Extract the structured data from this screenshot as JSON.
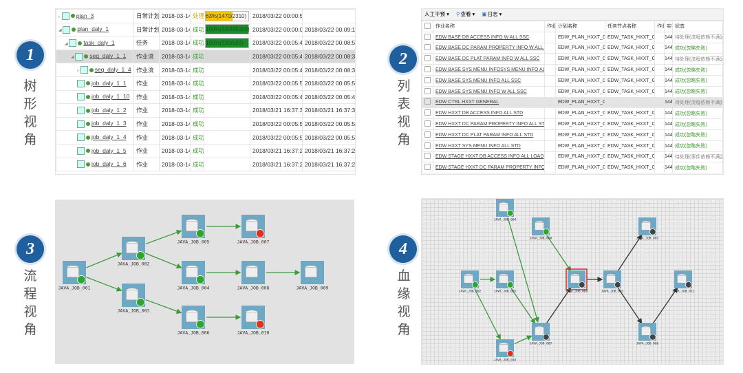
{
  "views": [
    {
      "number": "1",
      "label": [
        "树",
        "形",
        "视",
        "角"
      ]
    },
    {
      "number": "2",
      "label": [
        "列",
        "表",
        "视",
        "角"
      ]
    },
    {
      "number": "3",
      "label": [
        "流",
        "程",
        "视",
        "角"
      ]
    },
    {
      "number": "4",
      "label": [
        "血",
        "缘",
        "视",
        "角"
      ]
    }
  ],
  "tree_view": {
    "rows": [
      {
        "name": "plan_3",
        "type": "日常计划",
        "date": "2018-03-14",
        "status": "处理中",
        "progress": "63%(1470/2310)",
        "pct": 63,
        "start": "2018/03/22 00:00:51",
        "end": "",
        "indent": 0,
        "icon": "plan-icon"
      },
      {
        "name": "plan_daly_1",
        "type": "日常计划",
        "date": "2018-03-14",
        "status": "成功",
        "progress": "100%(5000/5000)",
        "pct": 100,
        "start": "2018/03/22 00:00:04",
        "end": "2018/03/22 00:09:13",
        "indent": 0,
        "icon": "plan-icon"
      },
      {
        "name": "task_daly_1",
        "type": "任务",
        "date": "2018-03-14",
        "status": "成功",
        "progress": "100%(500/500)",
        "pct": 100,
        "start": "2018/03/22 00:05:43",
        "end": "2018/03/22 00:08:55",
        "indent": 1,
        "icon": "folder-icon"
      },
      {
        "name": "seq_daly_1_1",
        "type": "作业流",
        "date": "2018-03-14",
        "status": "成功",
        "progress": "",
        "start": "2018/03/22 00:05:46",
        "end": "2018/03/22 00:08:35",
        "indent": 2,
        "icon": "sequence-icon",
        "selected": true
      },
      {
        "name": "seq_daly_1_4",
        "type": "作业流",
        "date": "2018-03-14",
        "status": "成功",
        "progress": "",
        "start": "2018/03/22 00:05:47",
        "end": "2018/03/22 00:08:34",
        "indent": 3,
        "icon": "sequence-icon"
      },
      {
        "name": "job_daly_1_1",
        "type": "作业",
        "date": "2018-03-14",
        "status": "成功",
        "progress": "",
        "start": "2018/03/22 00:05:59",
        "end": "2018/03/22 00:05:59",
        "indent": 3,
        "icon": "job-icon"
      },
      {
        "name": "job_daly_1_10",
        "type": "作业",
        "date": "2018-03-14",
        "status": "成功",
        "progress": "",
        "start": "2018/03/22 00:05:46",
        "end": "2018/03/22 00:05:46",
        "indent": 3,
        "icon": "job-icon"
      },
      {
        "name": "job_daly_1_2",
        "type": "作业",
        "date": "2018-03-14",
        "status": "成功",
        "progress": "",
        "start": "2018/03/21 16:37:30",
        "end": "2018/03/21 16:37:30",
        "indent": 3,
        "icon": "job-icon"
      },
      {
        "name": "job_daly_1_3",
        "type": "作业",
        "date": "2018-03-14",
        "status": "成功",
        "progress": "",
        "start": "2018/03/22 00:05:54",
        "end": "2018/03/22 00:05:54",
        "indent": 3,
        "icon": "job-icon"
      },
      {
        "name": "job_daly_1_4",
        "type": "作业",
        "date": "2018-03-14",
        "status": "成功",
        "progress": "",
        "start": "2018/03/22 00:05:53",
        "end": "2018/03/22 00:05:53",
        "indent": 3,
        "icon": "job-icon"
      },
      {
        "name": "job_daly_1_5",
        "type": "作业",
        "date": "2018-03-14",
        "status": "成功",
        "progress": "",
        "start": "2018/03/21 16:37:22",
        "end": "2018/03/21 16:37:22",
        "indent": 3,
        "icon": "job-icon"
      },
      {
        "name": "job_daly_1_6",
        "type": "作业",
        "date": "2018-03-14",
        "status": "成功",
        "progress": "",
        "start": "2018/03/21 16:37:26",
        "end": "2018/03/21 16:37:26",
        "indent": 3,
        "icon": "job-icon"
      }
    ]
  },
  "list_view": {
    "toolbar": [
      "人工干预 ▾",
      "查看 ▾",
      "日志 ▾"
    ],
    "headers": [
      "作业名称",
      "作业",
      "计划名称",
      "任务节点名称",
      "作业",
      "实例",
      "状态"
    ],
    "rows": [
      {
        "name": "EDW BASE DB ACCESS INFO W ALL SSC",
        "plan": "EDW_PLAN_HXXT_GENER",
        "task": "EDW_TASK_HXXT_GENER",
        "inst": "144(",
        "status": "待处理(流程依赖不满足)",
        "ok": false
      },
      {
        "name": "EDW BASE DC PARAM PROPERTY INFO W ALL SSC",
        "plan": "EDW_PLAN_HXXT_GENER",
        "task": "EDW_TASK_HXXT_GENER",
        "inst": "144(",
        "status": "成功(忽略失败)",
        "ok": true
      },
      {
        "name": "EDW BASE DC PLAT PARAM INFO W ALL SSC",
        "plan": "EDW_PLAN_HXXT_GENER",
        "task": "EDW_TASK_HXXT_GENER",
        "inst": "144(",
        "status": "待处理(流程依赖不满足)",
        "ok": false
      },
      {
        "name": "EDW BASE SYS MENU INFOSYS MENU INFO ALL SSC",
        "plan": "EDW_PLAN_HXXT_GENER",
        "task": "EDW_TASK_HXXT_GENER",
        "inst": "144(",
        "status": "成功(忽略失败)",
        "ok": true
      },
      {
        "name": "EDW BASE SYS MENU INFO ALL SSC",
        "plan": "EDW_PLAN_HXXT_GENER",
        "task": "EDW_TASK_HXXT_GENER",
        "inst": "144(",
        "status": "成功(忽略失败)",
        "ok": true
      },
      {
        "name": "EDW BASE SYS MENU INFO W ALL SSC",
        "plan": "EDW_PLAN_HXXT_GENER",
        "task": "EDW_TASK_HXXT_GENER",
        "inst": "144(",
        "status": "成功(忽略失败)",
        "ok": true
      },
      {
        "name": "EDW CTRL HXXT GENERAL",
        "plan": "EDW_PLAN_HXXT_GENER",
        "task": "",
        "inst": "144(",
        "status": "待处理(流程依赖不满足)",
        "ok": false,
        "selected": true
      },
      {
        "name": "EDW HXXT DB ACCESS INFO ALL STD",
        "plan": "EDW_PLAN_HXXT_GENER",
        "task": "EDW_TASK_HXXT_GENER",
        "inst": "144(",
        "status": "成功(忽略失败)",
        "ok": true
      },
      {
        "name": "EDW HXXT DC PARAM PROPERTY INFO ALL STD",
        "plan": "EDW_PLAN_HXXT_GENER",
        "task": "EDW_TASK_HXXT_GENER",
        "inst": "144(",
        "status": "成功(忽略失败)",
        "ok": true
      },
      {
        "name": "EDW HXXT DC PLAT PARAM INFO ALL STD",
        "plan": "EDW_PLAN_HXXT_GENER",
        "task": "EDW_TASK_HXXT_GENER",
        "inst": "144(",
        "status": "成功(忽略失败)",
        "ok": true
      },
      {
        "name": "EDW HXXT SYS MENU INFO ALL STD",
        "plan": "EDW_PLAN_HXXT_GENER",
        "task": "EDW_TASK_HXXT_GENER",
        "inst": "144(",
        "status": "成功(忽略失败)",
        "ok": true
      },
      {
        "name": "EDW STAGE HXXT DB ACCESS INFO ALL LOAD",
        "plan": "EDW_PLAN_HXXT_GENER",
        "task": "EDW_TASK_HXXT_GENER",
        "inst": "144(",
        "status": "待处理(事件依赖不满足)",
        "ok": false
      },
      {
        "name": "EDW STAGE HXXT DC PARAM PROPERTY INFO ALL LOA",
        "plan": "EDW_PLAN_HXXT_GENER",
        "task": "EDW_TASK_HXXT_GENER",
        "inst": "144(",
        "status": "成功(忽略失败)",
        "ok": true
      }
    ]
  },
  "flow_view": {
    "nodes": [
      {
        "id": "JAVA_JOB_001",
        "state": "success"
      },
      {
        "id": "JAVA_JOB_002",
        "state": "success"
      },
      {
        "id": "JAVA_JOB_003",
        "state": "success"
      },
      {
        "id": "JAVA_JOB_005",
        "state": "success"
      },
      {
        "id": "JAVA_JOB_004",
        "state": "success"
      },
      {
        "id": "JAVA_JOB_006",
        "state": "success"
      },
      {
        "id": "JAVA_JOB_007",
        "state": "failed"
      },
      {
        "id": "JAVA_JOB_008",
        "state": "none"
      },
      {
        "id": "JAVA_JOB_010",
        "state": "failed"
      },
      {
        "id": "JAVA_JOB_009",
        "state": "none"
      }
    ],
    "edges": [
      [
        "JAVA_JOB_001",
        "JAVA_JOB_002"
      ],
      [
        "JAVA_JOB_001",
        "JAVA_JOB_003"
      ],
      [
        "JAVA_JOB_002",
        "JAVA_JOB_005"
      ],
      [
        "JAVA_JOB_002",
        "JAVA_JOB_004"
      ],
      [
        "JAVA_JOB_003",
        "JAVA_JOB_006"
      ],
      [
        "JAVA_JOB_005",
        "JAVA_JOB_007"
      ],
      [
        "JAVA_JOB_004",
        "JAVA_JOB_008"
      ],
      [
        "JAVA_JOB_006",
        "JAVA_JOB_010"
      ],
      [
        "JAVA_JOB_008",
        "JAVA_JOB_009"
      ]
    ]
  },
  "lineage_view": {
    "nodes": [
      {
        "id": "JAVA_JOB_004",
        "state": "success"
      },
      {
        "id": "JAVA_JOB_008",
        "state": "success"
      },
      {
        "id": "JAVA_JOB_002",
        "state": "success"
      },
      {
        "id": "JAVA_JOB_005",
        "state": "success"
      },
      {
        "id": "JAVA_JOB_010",
        "state": "failed"
      },
      {
        "id": "JAVA_JOB_007",
        "state": "waiting"
      },
      {
        "id": "JAVA_JOB_009",
        "state": "waiting",
        "selected": true
      },
      {
        "id": "JAVA_JOB_001",
        "state": "waiting"
      },
      {
        "id": "JAVA_JOB_003",
        "state": "waiting"
      },
      {
        "id": "JAVA_JOB_006",
        "state": "waiting"
      },
      {
        "id": "JAVA_JOB_011",
        "state": "waiting"
      }
    ],
    "edges": [
      [
        "JAVA_JOB_002",
        "JAVA_JOB_005"
      ],
      [
        "JAVA_JOB_002",
        "JAVA_JOB_010"
      ],
      [
        "JAVA_JOB_005",
        "JAVA_JOB_007"
      ],
      [
        "JAVA_JOB_004",
        "JAVA_JOB_007"
      ],
      [
        "JAVA_JOB_008",
        "JAVA_JOB_009"
      ],
      [
        "JAVA_JOB_010",
        "JAVA_JOB_007"
      ],
      [
        "JAVA_JOB_007",
        "JAVA_JOB_009"
      ],
      [
        "JAVA_JOB_009",
        "JAVA_JOB_001"
      ],
      [
        "JAVA_JOB_001",
        "JAVA_JOB_003"
      ],
      [
        "JAVA_JOB_001",
        "JAVA_JOB_006"
      ],
      [
        "JAVA_JOB_006",
        "JAVA_JOB_011"
      ]
    ]
  },
  "colors": {
    "success": "#2fa52f",
    "failed": "#e03020",
    "waiting": "#444444",
    "edge_ok": "#3c9a3c",
    "edge_wait": "#333333",
    "badge": "#1f5f9e",
    "progress_ok": "#1e8a2e",
    "progress_run": "#f2c500"
  }
}
